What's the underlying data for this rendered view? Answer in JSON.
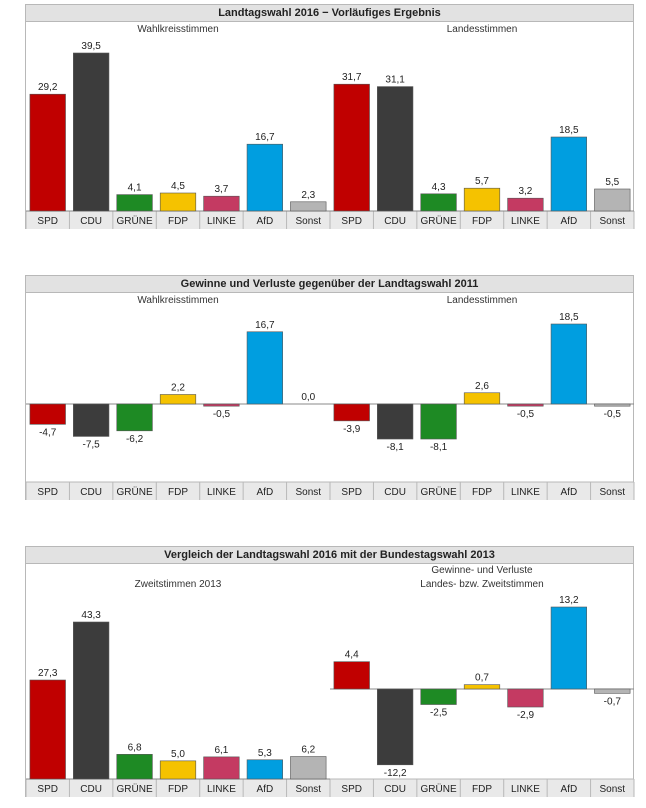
{
  "colors": {
    "SPD": "#c00000",
    "CDU": "#3c3c3c",
    "GRÜNE": "#1e8a24",
    "FDP": "#f5c200",
    "LINKE": "#c43a62",
    "AfD": "#009ee0",
    "Sonst": "#b4b4b4"
  },
  "panels": [
    {
      "title": "Landtagswahl 2016 − Vorläufiges Ergebnis",
      "left_heading": [
        "Wahlkreisstimmen"
      ],
      "right_heading": [
        "Landesstimmen"
      ]
    },
    {
      "title": "Gewinne und Verluste gegenüber der Landtagswahl 2011",
      "left_heading": [
        "Wahlkreisstimmen"
      ],
      "right_heading": [
        "Landesstimmen"
      ]
    },
    {
      "title": "Vergleich der Landtagswahl 2016 mit der Bundestagswahl 2013",
      "left_heading": [
        "Zweitstimmen 2013"
      ],
      "right_heading": [
        "Gewinne- und Verluste",
        "Landes- bzw. Zweitstimmen"
      ]
    }
  ],
  "chart_data": [
    {
      "type": "bar",
      "title": "Landtagswahl 2016 − Vorläufiges Ergebnis",
      "categories": [
        "SPD",
        "CDU",
        "GRÜNE",
        "FDP",
        "LINKE",
        "AfD",
        "Sonst",
        "SPD",
        "CDU",
        "GRÜNE",
        "FDP",
        "LINKE",
        "AfD",
        "Sonst"
      ],
      "values": [
        29.2,
        39.5,
        4.1,
        4.5,
        3.7,
        16.7,
        2.3,
        31.7,
        31.1,
        4.3,
        5.7,
        3.2,
        18.5,
        5.5
      ],
      "labels": [
        "29,2",
        "39,5",
        "4,1",
        "4,5",
        "3,7",
        "16,7",
        "2,3",
        "31,7",
        "31,1",
        "4,3",
        "5,7",
        "3,2",
        "18,5",
        "5,5"
      ],
      "ylim": [
        0,
        40.5
      ]
    },
    {
      "type": "bar",
      "title": "Gewinne und Verluste gegenüber der Landtagswahl 2011",
      "categories": [
        "SPD",
        "CDU",
        "GRÜNE",
        "FDP",
        "LINKE",
        "AfD",
        "Sonst",
        "SPD",
        "CDU",
        "GRÜNE",
        "FDP",
        "LINKE",
        "AfD",
        "Sonst"
      ],
      "values": [
        -4.7,
        -7.5,
        -6.2,
        2.2,
        -0.5,
        16.7,
        0.0,
        -3.9,
        -8.1,
        -8.1,
        2.6,
        -0.5,
        18.5,
        -0.5
      ],
      "labels": [
        "-4,7",
        "-7,5",
        "-6,2",
        "2,2",
        "-0,5",
        "16,7",
        "0,0",
        "-3,9",
        "-8,1",
        "-8,1",
        "2,6",
        "-0,5",
        "18,5",
        "-0,5"
      ],
      "ylim": [
        -8.5,
        19
      ]
    },
    {
      "type": "bar",
      "title": "Vergleich der Landtagswahl 2016 mit der Bundestagswahl 2013",
      "categories": [
        "SPD",
        "CDU",
        "GRÜNE",
        "FDP",
        "LINKE",
        "AfD",
        "Sonst",
        "SPD",
        "CDU",
        "GRÜNE",
        "FDP",
        "LINKE",
        "AfD",
        "Sonst"
      ],
      "values": [
        27.3,
        43.3,
        6.8,
        5.0,
        6.1,
        5.3,
        6.2,
        4.4,
        -12.2,
        -2.5,
        0.7,
        -2.9,
        13.2,
        -0.7
      ],
      "labels": [
        "27,3",
        "43,3",
        "6,8",
        "5,0",
        "6,1",
        "5,3",
        "6,2",
        "4,4",
        "-12,2",
        "-2,5",
        "0,7",
        "-2,9",
        "13,2",
        "-0,7"
      ],
      "ylim_left": [
        0,
        44
      ],
      "ylim_right": [
        -12.5,
        13.5
      ]
    }
  ]
}
